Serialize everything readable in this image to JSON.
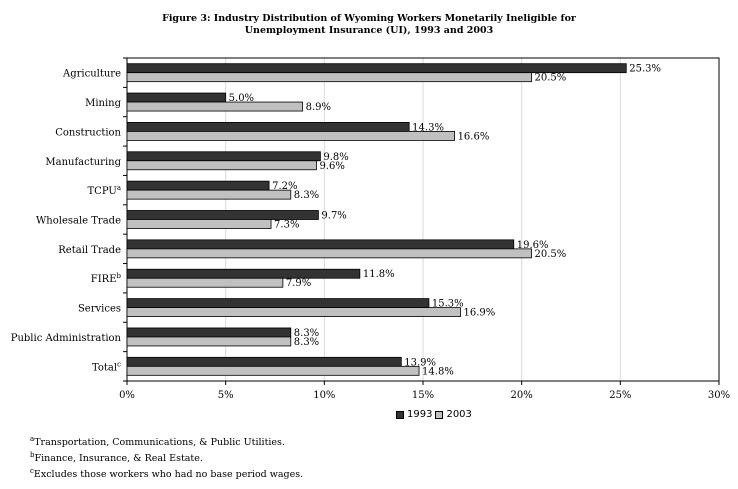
{
  "chart_data": {
    "type": "bar",
    "orientation": "horizontal",
    "title_line1": "Figure 3: Industry Distribution of Wyoming Workers Monetarily Ineligible for",
    "title_line2": "Unemployment Insurance (UI), 1993 and 2003",
    "categories": [
      {
        "label": "Agriculture",
        "sup": ""
      },
      {
        "label": "Mining",
        "sup": ""
      },
      {
        "label": "Construction",
        "sup": ""
      },
      {
        "label": "Manufacturing",
        "sup": ""
      },
      {
        "label": "TCPU",
        "sup": "a"
      },
      {
        "label": "Wholesale Trade",
        "sup": ""
      },
      {
        "label": "Retail Trade",
        "sup": ""
      },
      {
        "label": "FIRE",
        "sup": "b"
      },
      {
        "label": "Services",
        "sup": ""
      },
      {
        "label": "Public Administration",
        "sup": ""
      },
      {
        "label": "Total",
        "sup": "c"
      }
    ],
    "series": [
      {
        "name": "1993",
        "color": "#333333",
        "values": [
          25.3,
          5.0,
          14.3,
          9.8,
          7.2,
          9.7,
          19.6,
          11.8,
          15.3,
          8.3,
          13.9
        ],
        "labels": [
          "25.3%",
          "5.0%",
          "14.3%",
          "9.8%",
          "7.2%",
          "9.7%",
          "19.6%",
          "11.8%",
          "15.3%",
          "8.3%",
          "13.9%"
        ]
      },
      {
        "name": "2003",
        "color": "#c0c0c0",
        "values": [
          20.5,
          8.9,
          16.6,
          9.6,
          8.3,
          7.3,
          20.5,
          7.9,
          16.9,
          8.3,
          14.8
        ],
        "labels": [
          "20.5%",
          "8.9%",
          "16.6%",
          "9.6%",
          "8.3%",
          "7.3%",
          "20.5%",
          "7.9%",
          "16.9%",
          "8.3%",
          "14.8%"
        ]
      }
    ],
    "xlim": [
      0,
      30
    ],
    "xticks": [
      0,
      5,
      10,
      15,
      20,
      25,
      30
    ],
    "xtick_labels": [
      "0%",
      "5%",
      "10%",
      "15%",
      "20%",
      "25%",
      "30%"
    ],
    "grid": true,
    "legend_position": "bottom"
  },
  "footnotes": [
    {
      "mark": "a",
      "text": "Transportation, Communications, & Public Utilities."
    },
    {
      "mark": "b",
      "text": "Finance, Insurance, & Real Estate."
    },
    {
      "mark": "c",
      "text": "Excludes those workers who had no base period wages."
    }
  ]
}
